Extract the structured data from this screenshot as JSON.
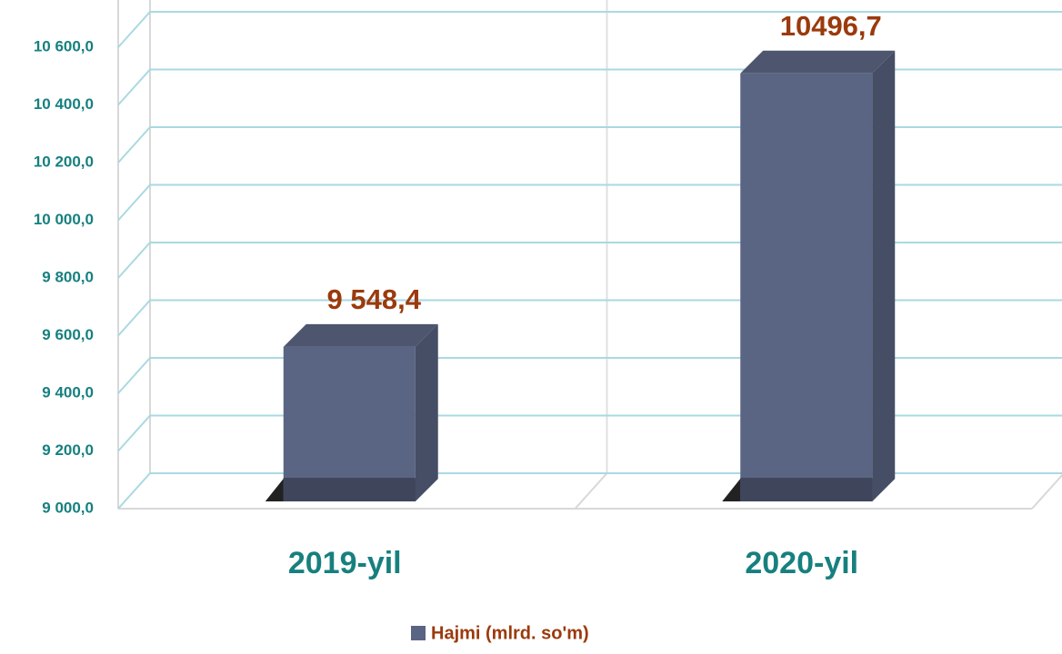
{
  "chart_data": {
    "type": "bar3d",
    "categories": [
      "2019-yil",
      "2020-yil"
    ],
    "series": [
      {
        "name": "Hajmi (mlrd. so'm)",
        "color": "#5a6483",
        "values": [
          9548.4,
          10496.7
        ],
        "value_labels": [
          "9 548,4",
          "10496,7"
        ]
      }
    ],
    "ylim": [
      9000,
      10800
    ],
    "yticks": [
      {
        "value": 9000,
        "label": "9 000,0"
      },
      {
        "value": 9200,
        "label": "9 200,0"
      },
      {
        "value": 9400,
        "label": "9 400,0"
      },
      {
        "value": 9600,
        "label": "9 600,0"
      },
      {
        "value": 9800,
        "label": "9 800,0"
      },
      {
        "value": 10000,
        "label": "10 000,0"
      },
      {
        "value": 10200,
        "label": "10 200,0"
      },
      {
        "value": 10400,
        "label": "10 400,0"
      },
      {
        "value": 10600,
        "label": "10 600,0"
      }
    ],
    "grid": true,
    "legend": "bottom"
  }
}
